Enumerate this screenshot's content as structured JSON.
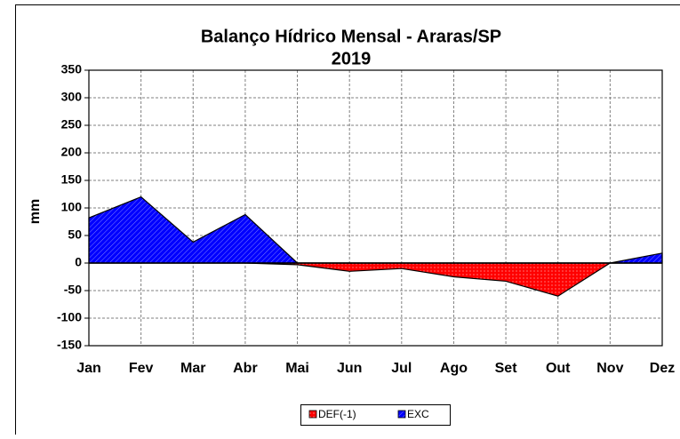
{
  "chart_data": {
    "type": "area",
    "title": "Balanço Hídrico Mensal - Araras/SP",
    "subtitle": "2019",
    "y_label": "mm",
    "categories": [
      "Jan",
      "Fev",
      "Mar",
      "Abr",
      "Mai",
      "Jun",
      "Jul",
      "Ago",
      "Set",
      "Out",
      "Nov",
      "Dez"
    ],
    "series": [
      {
        "name": "DEF(-1)",
        "color": "#ff0000",
        "values": [
          0,
          0,
          0,
          0,
          -3,
          -15,
          -10,
          -25,
          -33,
          -60,
          0,
          0
        ]
      },
      {
        "name": "EXC",
        "color": "#0000ff",
        "values": [
          82,
          120,
          38,
          88,
          0,
          0,
          0,
          0,
          0,
          0,
          0,
          18
        ]
      }
    ],
    "ylim": [
      -150,
      350
    ],
    "yticks": [
      -150,
      -100,
      -50,
      0,
      50,
      100,
      150,
      200,
      250,
      300,
      350
    ],
    "grid": true,
    "legend": "bottom"
  }
}
